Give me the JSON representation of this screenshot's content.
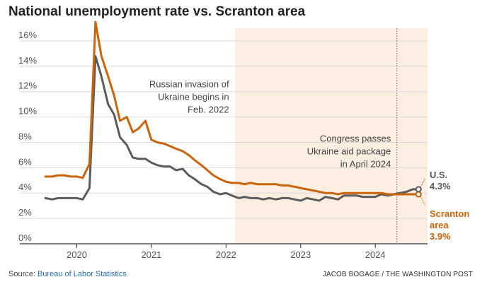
{
  "title": "National unemployment rate vs. Scranton area",
  "chart_data": {
    "type": "line",
    "title": "National unemployment rate vs. Scranton area",
    "xlabel": "",
    "ylabel": "",
    "ylim": [
      0,
      17
    ],
    "y_ticks": [
      0,
      2,
      4,
      6,
      8,
      10,
      12,
      14,
      16
    ],
    "y_tick_labels": [
      "0%",
      "2%",
      "4%",
      "6%",
      "8%",
      "10%",
      "12%",
      "14%",
      "16%"
    ],
    "x_ticks": [
      2020,
      2021,
      2022,
      2023,
      2024
    ],
    "x_tick_labels": [
      "2020",
      "2021",
      "2022",
      "2023",
      "2024"
    ],
    "xlim": [
      2019.54,
      2024.7
    ],
    "grid": "horizontal",
    "colors": {
      "us": "#5b5b5b",
      "scranton": "#c8640b",
      "shade": "#fdeee2",
      "grid": "#d9d9d9"
    },
    "shaded_region": {
      "from": 2022.12,
      "to": 2024.7
    },
    "series": [
      {
        "key": "scranton",
        "x": [
          2019.58,
          2019.67,
          2019.75,
          2019.83,
          2019.92,
          2020.0,
          2020.08,
          2020.17,
          2020.25,
          2020.33,
          2020.42,
          2020.5,
          2020.58,
          2020.67,
          2020.75,
          2020.83,
          2020.92,
          2021.0,
          2021.08,
          2021.17,
          2021.25,
          2021.33,
          2021.42,
          2021.5,
          2021.58,
          2021.67,
          2021.75,
          2021.83,
          2021.92,
          2022.0,
          2022.08,
          2022.17,
          2022.25,
          2022.33,
          2022.42,
          2022.5,
          2022.58,
          2022.67,
          2022.75,
          2022.83,
          2022.92,
          2023.0,
          2023.08,
          2023.17,
          2023.25,
          2023.33,
          2023.42,
          2023.5,
          2023.58,
          2023.67,
          2023.75,
          2023.83,
          2023.92,
          2024.0,
          2024.08,
          2024.17,
          2024.25,
          2024.33,
          2024.42,
          2024.5,
          2024.58
        ],
        "y": [
          5.3,
          5.3,
          5.4,
          5.4,
          5.3,
          5.3,
          5.2,
          6.3,
          17.5,
          14.8,
          13.2,
          11.7,
          9.7,
          10.0,
          8.8,
          9.1,
          9.7,
          8.2,
          8.0,
          7.9,
          7.7,
          7.5,
          7.3,
          7.0,
          6.6,
          6.2,
          5.8,
          5.4,
          5.1,
          4.9,
          4.8,
          4.8,
          4.7,
          4.8,
          4.7,
          4.7,
          4.7,
          4.7,
          4.6,
          4.6,
          4.5,
          4.4,
          4.3,
          4.2,
          4.1,
          4.0,
          4.0,
          3.9,
          4.0,
          4.0,
          4.0,
          4.0,
          4.0,
          4.0,
          4.0,
          3.9,
          3.9,
          3.9,
          3.9,
          3.9,
          3.9
        ]
      },
      {
        "key": "us",
        "x": [
          2019.58,
          2019.67,
          2019.75,
          2019.83,
          2019.92,
          2020.0,
          2020.08,
          2020.17,
          2020.25,
          2020.33,
          2020.42,
          2020.5,
          2020.58,
          2020.67,
          2020.75,
          2020.83,
          2020.92,
          2021.0,
          2021.08,
          2021.17,
          2021.25,
          2021.33,
          2021.42,
          2021.5,
          2021.58,
          2021.67,
          2021.75,
          2021.83,
          2021.92,
          2022.0,
          2022.08,
          2022.17,
          2022.25,
          2022.33,
          2022.42,
          2022.5,
          2022.58,
          2022.67,
          2022.75,
          2022.83,
          2022.92,
          2023.0,
          2023.08,
          2023.17,
          2023.25,
          2023.33,
          2023.42,
          2023.5,
          2023.58,
          2023.67,
          2023.75,
          2023.83,
          2023.92,
          2024.0,
          2024.08,
          2024.17,
          2024.25,
          2024.33,
          2024.42,
          2024.5,
          2024.58
        ],
        "y": [
          3.6,
          3.5,
          3.6,
          3.6,
          3.6,
          3.6,
          3.5,
          4.4,
          14.8,
          13.2,
          11.0,
          10.2,
          8.4,
          7.8,
          6.8,
          6.7,
          6.7,
          6.4,
          6.2,
          6.1,
          6.1,
          5.8,
          5.9,
          5.4,
          5.1,
          4.7,
          4.5,
          4.1,
          3.9,
          4.0,
          3.8,
          3.6,
          3.7,
          3.6,
          3.6,
          3.5,
          3.6,
          3.5,
          3.6,
          3.6,
          3.5,
          3.4,
          3.6,
          3.5,
          3.4,
          3.7,
          3.6,
          3.5,
          3.8,
          3.8,
          3.8,
          3.7,
          3.7,
          3.7,
          3.9,
          3.8,
          3.9,
          4.0,
          4.1,
          4.3,
          4.3
        ]
      }
    ],
    "annotations": [
      {
        "lines": [
          "Russian invasion of",
          "Ukraine begins in",
          "Feb. 2022"
        ],
        "x": 2022.04,
        "y": 12.35,
        "anchor": "end"
      },
      {
        "lines": [
          "Congress passes",
          "Ukraine aid package",
          "in April 2024"
        ],
        "x": 2024.21,
        "y": 8.05,
        "anchor": "end"
      }
    ],
    "end_labels": [
      {
        "series": "us",
        "lines": [
          "U.S.",
          "4.3%"
        ]
      },
      {
        "series": "scranton",
        "lines": [
          "Scranton",
          "area",
          "3.9%"
        ]
      }
    ],
    "marker_line_x": 2024.29
  },
  "footer": {
    "source_prefix": "Source: ",
    "source_link": "Bureau of Labor Statistics",
    "credit": "JACOB BOGAGE / THE WASHINGTON POST"
  }
}
